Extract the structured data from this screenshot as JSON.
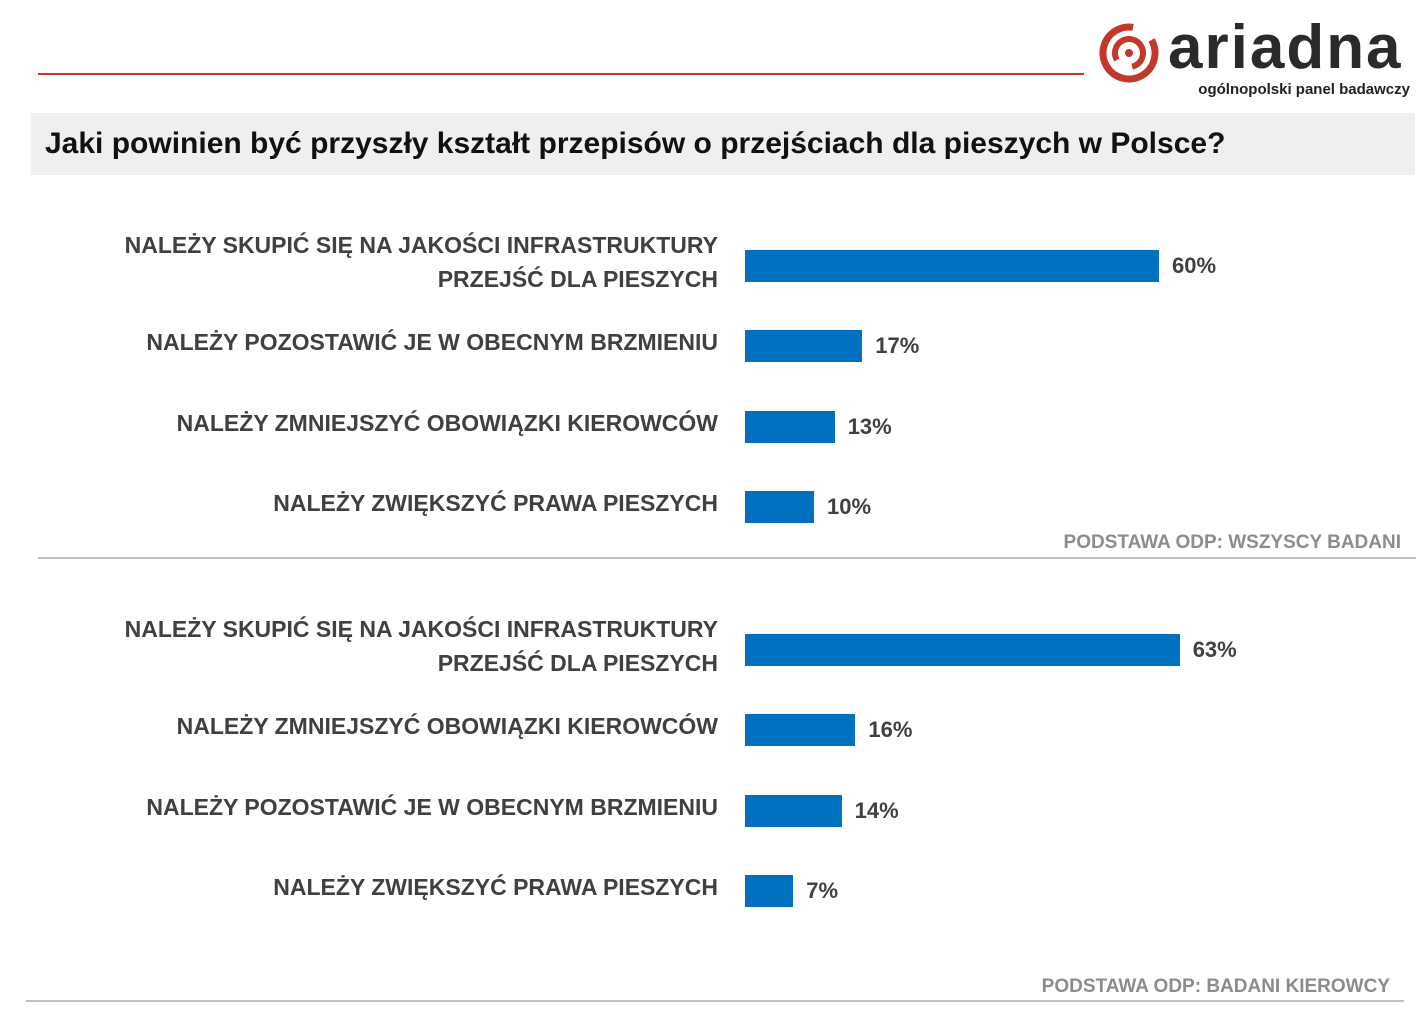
{
  "brand": {
    "name": "ariadna",
    "tagline": "ogólnopolski panel badawczy",
    "accent_color": "#c0392b",
    "icon": "ariadna-logo-icon"
  },
  "header": {
    "question": "Jaki powinien być przyszły kształt przepisów o przejściach dla pieszych w Polsce?"
  },
  "chart_data": [
    {
      "type": "bar",
      "orientation": "horizontal",
      "categories": [
        "NALEŻY SKUPIĆ SIĘ NA JAKOŚCI INFRASTRUKTURY PRZEJŚĆ DLA PIESZYCH",
        "NALEŻY POZOSTAWIĆ JE W OBECNYM BRZMIENIU",
        "NALEŻY ZMNIEJSZYĆ OBOWIĄZKI KIEROWCÓW",
        "NALEŻY ZWIĘKSZYĆ PRAWA PIESZYCH"
      ],
      "values": [
        60,
        17,
        13,
        10
      ],
      "value_labels": [
        "60%",
        "17%",
        "13%",
        "10%"
      ],
      "unit": "%",
      "bar_color": "#0070c0",
      "note": "PODSTAWA ODP: WSZYSCY BADANI"
    },
    {
      "type": "bar",
      "orientation": "horizontal",
      "categories": [
        "NALEŻY SKUPIĆ SIĘ NA JAKOŚCI INFRASTRUKTURY PRZEJŚĆ DLA PIESZYCH",
        "NALEŻY ZMNIEJSZYĆ OBOWIĄZKI KIEROWCÓW",
        "NALEŻY POZOSTAWIĆ JE W OBECNYM BRZMIENIU",
        "NALEŻY ZWIĘKSZYĆ PRAWA PIESZYCH"
      ],
      "values": [
        63,
        16,
        14,
        7
      ],
      "value_labels": [
        "63%",
        "16%",
        "14%",
        "7%"
      ],
      "unit": "%",
      "bar_color": "#0070c0",
      "note": "PODSTAWA ODP: BADANI KIEROWCY"
    }
  ]
}
